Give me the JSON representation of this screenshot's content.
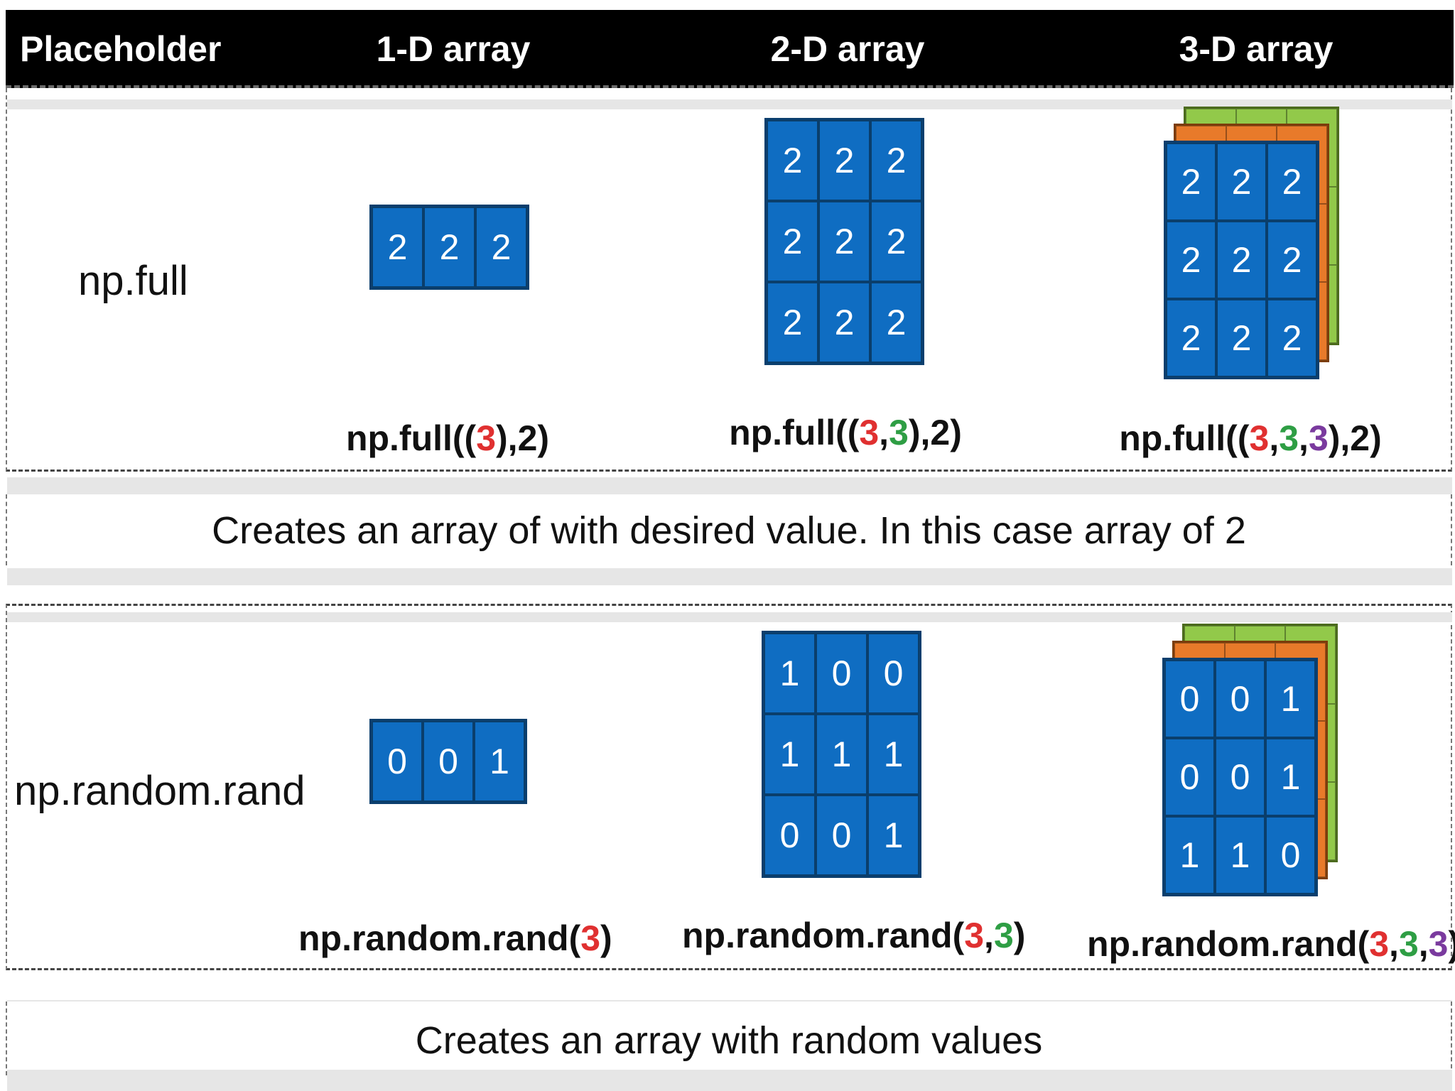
{
  "header": {
    "col0": "Placeholder",
    "col1": "1-D array",
    "col2": "2-D array",
    "col3": "3-D array"
  },
  "rows": [
    {
      "label": "np.full",
      "d1": {
        "values": [
          [
            "2",
            "2",
            "2"
          ]
        ],
        "code": {
          "pre": "np.full((",
          "a": "3",
          "post": "),2)"
        }
      },
      "d2": {
        "values": [
          [
            "2",
            "2",
            "2"
          ],
          [
            "2",
            "2",
            "2"
          ],
          [
            "2",
            "2",
            "2"
          ]
        ],
        "code": {
          "pre": "np.full((",
          "a": "3",
          "sep1": ",",
          "b": "3",
          "post": "),2)"
        }
      },
      "d3": {
        "values": [
          [
            "2",
            "2",
            "2"
          ],
          [
            "2",
            "2",
            "2"
          ],
          [
            "2",
            "2",
            "2"
          ]
        ],
        "code": {
          "pre": "np.full((",
          "a": "3",
          "sep1": ",",
          "b": "3",
          "sep2": ",",
          "c": "3",
          "post": "),2)"
        }
      },
      "description": "Creates an array of with desired value. In this case array of 2"
    },
    {
      "label": "np.random.rand",
      "d1": {
        "values": [
          [
            "0",
            "0",
            "1"
          ]
        ],
        "code": {
          "pre": "np.random.rand(",
          "a": "3",
          "post": ")"
        }
      },
      "d2": {
        "values": [
          [
            "1",
            "0",
            "0"
          ],
          [
            "1",
            "1",
            "1"
          ],
          [
            "0",
            "0",
            "1"
          ]
        ],
        "code": {
          "pre": "np.random.rand(",
          "a": "3",
          "sep1": ",",
          "b": "3",
          "post": ")"
        }
      },
      "d3": {
        "values": [
          [
            "0",
            "0",
            "1"
          ],
          [
            "0",
            "0",
            "1"
          ],
          [
            "1",
            "1",
            "0"
          ]
        ],
        "code": {
          "pre": "np.random.rand(",
          "a": "3",
          "sep1": ",",
          "b": "3",
          "sep2": ",",
          "c": "3",
          "post": ")"
        }
      },
      "description": "Creates an array with random values"
    }
  ],
  "colors": {
    "cell_blue": "#0f6dc2",
    "layer_green": "#92c94a",
    "layer_orange": "#e87a2a",
    "dim1_red": "#e03030",
    "dim2_green": "#2e9e44",
    "dim3_purple": "#7a3a9e"
  }
}
